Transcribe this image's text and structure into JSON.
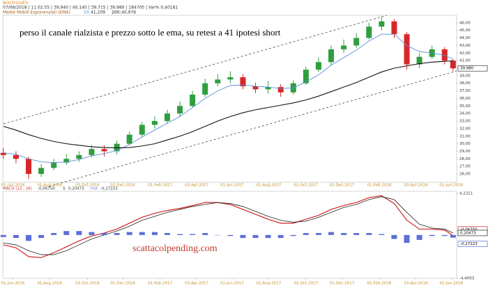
{
  "chart_data": [
    {
      "type": "candlestick",
      "title": "BOUYGUES",
      "info": "07/06/2018 | 11.02.55 | 39,940 | 40,140 | 39,715 | 39,980 | 184705 | Var% 0,40181",
      "indicator_title": "Medie Mobili Esponenziali (EMA)",
      "annotation": "perso il canale rialzista e prezzo sotto le ema, su retest a 41 ipotesi short",
      "watermark": "scattacolpending.com",
      "x": [
        "2016-05-16",
        "2016-06-06",
        "2016-06-27",
        "2016-07-18",
        "2016-08-08",
        "2016-08-29",
        "2016-09-19",
        "2016-10-10",
        "2016-10-31",
        "2016-11-21",
        "2016-12-12",
        "2017-01-02",
        "2017-01-23",
        "2017-02-13",
        "2017-03-06",
        "2017-03-27",
        "2017-04-17",
        "2017-05-08",
        "2017-05-29",
        "2017-06-19",
        "2017-07-10",
        "2017-07-31",
        "2017-08-21",
        "2017-09-11",
        "2017-10-02",
        "2017-10-23",
        "2017-11-13",
        "2017-12-04",
        "2017-12-25",
        "2018-01-15",
        "2018-02-05",
        "2018-02-26",
        "2018-03-19",
        "2018-04-09",
        "2018-04-30",
        "2018-05-21",
        "2018-06-04"
      ],
      "open": [
        28.8,
        28.5,
        28.0,
        26.0,
        26.8,
        27.5,
        28.0,
        28.5,
        29.3,
        29.0,
        30.0,
        31.2,
        32.5,
        33.0,
        34.0,
        35.0,
        36.5,
        38.0,
        38.5,
        38.8,
        37.6,
        37.2,
        37.5,
        36.8,
        38.0,
        39.8,
        40.8,
        42.5,
        43.0,
        44.0,
        45.5,
        46.2,
        44.5,
        40.5,
        41.5,
        42.5,
        41.0
      ],
      "high": [
        29.4,
        29.0,
        28.3,
        27.3,
        28.0,
        28.6,
        29.0,
        29.8,
        29.8,
        30.4,
        31.6,
        32.9,
        33.6,
        34.5,
        35.6,
        37.0,
        38.6,
        39.2,
        39.6,
        39.2,
        38.1,
        38.3,
        37.9,
        38.4,
        40.2,
        41.4,
        43.0,
        43.8,
        44.6,
        46.0,
        46.8,
        46.5,
        44.8,
        42.0,
        43.0,
        42.8,
        41.2
      ],
      "low": [
        28.0,
        27.4,
        25.3,
        25.6,
        26.5,
        27.2,
        27.6,
        28.2,
        28.3,
        28.6,
        29.8,
        30.9,
        32.0,
        32.7,
        33.6,
        34.8,
        36.2,
        37.6,
        38.0,
        37.2,
        36.7,
        36.6,
        36.2,
        36.5,
        37.8,
        39.5,
        40.4,
        42.0,
        42.7,
        43.8,
        45.0,
        44.0,
        39.8,
        40.0,
        41.2,
        40.5,
        39.6
      ],
      "close": [
        28.5,
        28.0,
        26.0,
        26.8,
        27.5,
        28.0,
        28.5,
        29.3,
        29.0,
        30.0,
        31.2,
        32.5,
        33.0,
        34.0,
        35.0,
        36.5,
        38.0,
        38.5,
        38.8,
        37.6,
        37.2,
        37.5,
        36.8,
        38.0,
        39.8,
        40.8,
        42.5,
        43.0,
        44.0,
        45.5,
        46.2,
        44.5,
        40.5,
        41.5,
        42.5,
        41.0,
        39.98
      ],
      "up_color": "#2e9e3e",
      "down_color": "#d62728",
      "last_label": "39,980",
      "series": [
        {
          "name": "50:",
          "color": "#5b8fd6",
          "last_label": "41,209",
          "values": [
            28.8,
            28.6,
            28.0,
            27.6,
            27.5,
            27.6,
            27.9,
            28.4,
            28.7,
            29.1,
            29.9,
            30.9,
            31.8,
            32.7,
            33.6,
            34.8,
            36.0,
            37.0,
            37.7,
            37.8,
            37.6,
            37.5,
            37.3,
            37.4,
            38.2,
            39.1,
            40.4,
            41.4,
            42.4,
            43.6,
            44.5,
            44.5,
            43.0,
            42.2,
            42.0,
            41.7,
            41.209
          ]
        },
        {
          "name": "200:",
          "color": "#111111",
          "last_label": "40,978",
          "values": [
            32.3,
            31.8,
            31.2,
            30.7,
            30.3,
            30.0,
            29.8,
            29.6,
            29.5,
            29.45,
            29.5,
            29.7,
            30.0,
            30.5,
            31.0,
            31.6,
            32.3,
            33.0,
            33.6,
            34.1,
            34.5,
            34.8,
            35.1,
            35.4,
            35.8,
            36.3,
            36.9,
            37.5,
            38.1,
            38.8,
            39.5,
            40.0,
            40.3,
            40.6,
            40.8,
            40.9,
            40.978
          ]
        }
      ],
      "xlim": [
        "2016-05-15",
        "2018-06-10"
      ],
      "xticks": [
        {
          "value": "2016-06-01",
          "label": "01-Jun-2016"
        },
        {
          "value": "2016-08-01",
          "label": "01-Aug-2016"
        },
        {
          "value": "2016-10-03",
          "label": "03-Oct-2016"
        },
        {
          "value": "2016-12-01",
          "label": "01-Dec-2016"
        },
        {
          "value": "2017-02-01",
          "label": "01-Feb-2017"
        },
        {
          "value": "2017-04-03",
          "label": "03-Apr-2017"
        },
        {
          "value": "2017-06-01",
          "label": "01-Jun-2017"
        },
        {
          "value": "2017-08-01",
          "label": "01-Aug-2017"
        },
        {
          "value": "2017-10-02",
          "label": "02-Oct-2017"
        },
        {
          "value": "2017-12-01",
          "label": "01-Dec-2017"
        },
        {
          "value": "2018-02-01",
          "label": "01-Feb-2018"
        },
        {
          "value": "2018-04-03",
          "label": "03-Apr-2018"
        },
        {
          "value": "2018-06-01",
          "label": "01-Jun-2018"
        }
      ],
      "ylim": [
        24.9,
        47.0
      ],
      "yticks": [
        {
          "value": 26,
          "label": "26,00"
        },
        {
          "value": 27,
          "label": "27,00"
        },
        {
          "value": 28,
          "label": "28,00"
        },
        {
          "value": 29,
          "label": "29,00"
        },
        {
          "value": 30,
          "label": "30,00"
        },
        {
          "value": 31,
          "label": "31,00"
        },
        {
          "value": 32,
          "label": "32,00"
        },
        {
          "value": 33,
          "label": "33,00"
        },
        {
          "value": 34,
          "label": "34,00"
        },
        {
          "value": 35,
          "label": "35,00"
        },
        {
          "value": 36,
          "label": "36,00"
        },
        {
          "value": 37,
          "label": "37,00"
        },
        {
          "value": 38,
          "label": "38,00"
        },
        {
          "value": 39,
          "label": "39,00"
        },
        {
          "value": 40,
          "label": "40,00"
        },
        {
          "value": 41,
          "label": "41,00"
        },
        {
          "value": 42,
          "label": "42,00"
        },
        {
          "value": 43,
          "label": "43,00"
        },
        {
          "value": 44,
          "label": "44,00"
        },
        {
          "value": 45,
          "label": "45,00"
        },
        {
          "value": 46,
          "label": "46,00"
        }
      ]
    },
    {
      "type": "macd",
      "series": [
        {
          "name": "MACD (12 , 26)",
          "color": "#cc2222",
          "last_label": "-0,06750",
          "values": [
            -1.0,
            -1.3,
            -2.2,
            -2.3,
            -1.8,
            -1.2,
            -0.6,
            -0.1,
            0.2,
            0.6,
            1.2,
            1.8,
            2.2,
            2.5,
            2.7,
            3.0,
            3.3,
            3.3,
            3.1,
            2.6,
            2.1,
            1.6,
            1.2,
            1.2,
            1.6,
            2.0,
            2.6,
            3.0,
            3.3,
            3.8,
            4.0,
            3.2,
            1.5,
            0.6,
            0.6,
            0.5,
            -0.0675
          ]
        },
        {
          "name": "S",
          "color": "#222222",
          "last_label": "0,20473",
          "values": [
            -0.8,
            -1.0,
            -1.6,
            -2.0,
            -2.0,
            -1.6,
            -1.0,
            -0.4,
            0.0,
            0.4,
            0.9,
            1.5,
            1.9,
            2.3,
            2.6,
            2.9,
            3.1,
            3.3,
            3.2,
            2.9,
            2.4,
            1.9,
            1.5,
            1.3,
            1.4,
            1.8,
            2.3,
            2.8,
            3.1,
            3.6,
            3.9,
            3.6,
            2.3,
            1.1,
            0.7,
            0.6,
            0.20473
          ]
        },
        {
          "name": "hist",
          "color": "#5b6fd6",
          "last_label": "-0,27223",
          "values": [
            -0.2,
            -0.3,
            -0.6,
            -0.3,
            0.2,
            0.4,
            0.4,
            0.3,
            0.2,
            0.2,
            0.3,
            0.3,
            0.3,
            0.2,
            0.1,
            0.1,
            0.2,
            0.0,
            -0.1,
            -0.3,
            -0.3,
            -0.3,
            -0.3,
            -0.1,
            0.2,
            0.2,
            0.3,
            0.2,
            0.2,
            0.2,
            0.1,
            -0.4,
            -0.8,
            -0.5,
            -0.1,
            -0.1,
            -0.27223
          ]
        }
      ],
      "ylim": [
        -4.4003,
        4.2311
      ],
      "yticks": [
        {
          "value": 4.2311,
          "label": "4,2311"
        },
        {
          "value": -4.4003,
          "label": "-4,4003"
        }
      ]
    }
  ]
}
